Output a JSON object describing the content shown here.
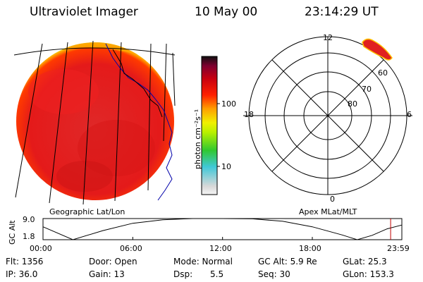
{
  "header": {
    "instrument": "Ultraviolet Imager",
    "date": "10 May 00",
    "time": "23:14:29 UT"
  },
  "geo_panel": {
    "label": "Geographic Lat/Lon"
  },
  "colorbar": {
    "unit_label": "photon cm⁻²s⁻¹",
    "ticks": [
      "100",
      "10"
    ],
    "scale": "log",
    "colors": [
      "#d8d8d8",
      "#40c8d8",
      "#50d040",
      "#f0f000",
      "#ffa000",
      "#ff2000",
      "#d80000",
      "#a00020",
      "#200020"
    ]
  },
  "polar_panel": {
    "label": "Apex  MLat/MLT",
    "mlt_labels": {
      "top": "12",
      "left": "18",
      "right": "6",
      "bottom": "0"
    },
    "mlat_labels": [
      "60",
      "70",
      "80"
    ]
  },
  "orbit_plot": {
    "ylabel": "GC Alt",
    "yticks": [
      "9.0",
      "1.8"
    ],
    "xticks": [
      "00:00",
      "06:00",
      "12:00",
      "18:00",
      "23:59"
    ],
    "current_time_marker_color": "#c00000"
  },
  "info": {
    "flt": "Flt: 1356",
    "ip": "IP: 36.0",
    "door": "Door: Open",
    "gain": "Gain: 13",
    "mode": "Mode: Normal",
    "dsp_label": "Dsp:",
    "dsp_value": "5.5",
    "gc_alt": "GC Alt: 5.9 Re",
    "seq": "Seq: 30",
    "glat": "GLat: 25.3",
    "glon": "GLon: 153.3"
  },
  "chart_data": {
    "type": "line",
    "title": "Ultraviolet Imager",
    "xlabel": "",
    "ylabel": "GC Alt",
    "x_range": [
      "00:00",
      "23:59"
    ],
    "ylim": [
      1.8,
      9.0
    ],
    "series": [
      {
        "x": [
          "00:00",
          "02:00",
          "04:00",
          "06:00",
          "08:00",
          "10:00",
          "12:00",
          "14:00",
          "16:00",
          "18:00",
          "20:00",
          "21:00",
          "22:00",
          "23:00",
          "23:59"
        ],
        "y": [
          6.2,
          1.8,
          4.9,
          7.4,
          8.6,
          9.0,
          9.0,
          8.9,
          8.1,
          6.2,
          3.4,
          1.8,
          3.3,
          5.5,
          6.8
        ]
      }
    ],
    "current_time": "23:14"
  }
}
